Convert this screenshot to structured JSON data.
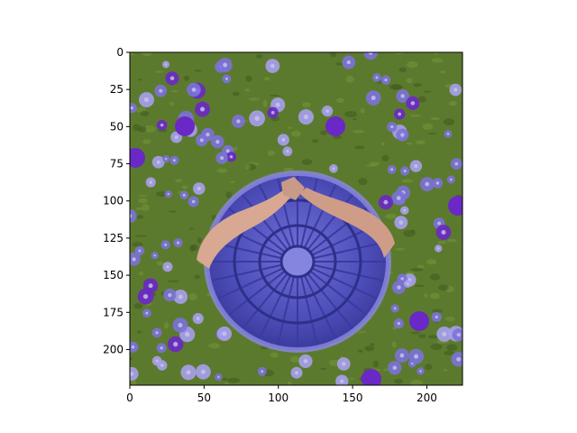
{
  "chart_data": {
    "type": "image",
    "title": "",
    "xlabel": "",
    "ylabel": "",
    "xlim": [
      0,
      224
    ],
    "ylim": [
      224,
      0
    ],
    "x_ticks": [
      0,
      50,
      100,
      150,
      200
    ],
    "y_ticks": [
      0,
      25,
      50,
      75,
      100,
      125,
      150,
      175,
      200
    ],
    "grid": false,
    "legend": "none",
    "image_subject": "top-down photo of folded hands resting on a round purple stained-glass window set in grass scattered with purple flowers",
    "colors": {
      "grass": "#5c7a2e",
      "grass_dark": "#3f5a1f",
      "flower": "#7b72d8",
      "flower_light": "#a7a0ec",
      "flower_deep": "#6a28c6",
      "window": "#5b5bc4",
      "window_dark": "#3b3aa0",
      "skin": "#d8a892",
      "axis": "#000000"
    }
  }
}
